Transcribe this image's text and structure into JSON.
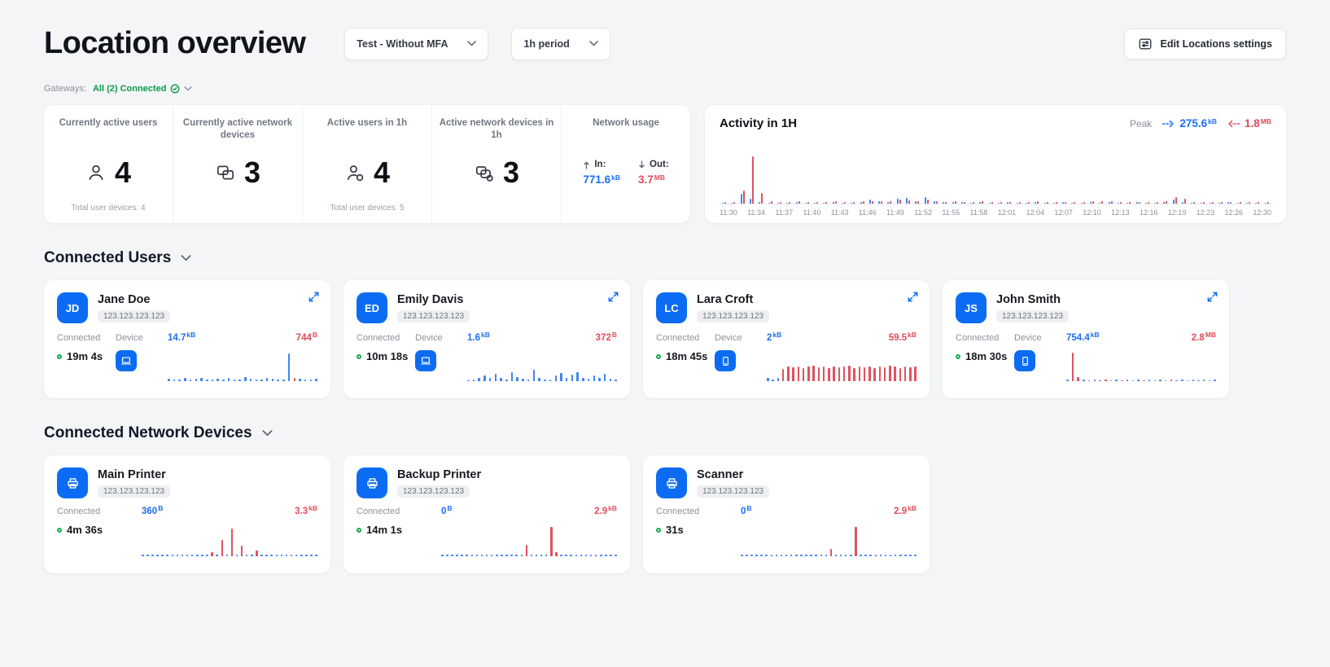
{
  "header": {
    "title": "Location overview",
    "location_dropdown": "Test - Without MFA",
    "period_dropdown": "1h period",
    "edit_button": "Edit Locations settings"
  },
  "gateways": {
    "label": "Gateways:",
    "value": "All (2) Connected"
  },
  "stats": [
    {
      "label": "Currently active users",
      "value": "4",
      "footer": "Total user devices: 4"
    },
    {
      "label": "Currently active network devices",
      "value": "3",
      "footer": ""
    },
    {
      "label": "Active users in 1h",
      "value": "4",
      "footer": "Total user devices: 5"
    },
    {
      "label": "Active network devices in 1h",
      "value": "3",
      "footer": ""
    }
  ],
  "network_usage": {
    "label": "Network usage",
    "in_label": "In:",
    "in_value": "771.6",
    "in_unit": "kB",
    "out_label": "Out:",
    "out_value": "3.7",
    "out_unit": "MB"
  },
  "activity": {
    "title": "Activity in 1H",
    "peak_label": "Peak",
    "peak_in_value": "275.6",
    "peak_in_unit": "kB",
    "peak_out_value": "1.8",
    "peak_out_unit": "MB",
    "ticks": [
      "11:30",
      "11:34",
      "11:37",
      "11:40",
      "11:43",
      "11:46",
      "11:49",
      "11:52",
      "11:55",
      "11:58",
      "12:01",
      "12:04",
      "12:07",
      "12:10",
      "12:13",
      "12:16",
      "12:19",
      "12:23",
      "12:26",
      "12:30"
    ],
    "bars": [
      [
        2,
        3
      ],
      [
        2,
        4
      ],
      [
        20,
        28
      ],
      [
        10,
        100
      ],
      [
        3,
        22
      ],
      [
        2,
        5
      ],
      [
        2,
        4
      ],
      [
        2,
        3
      ],
      [
        3,
        5
      ],
      [
        2,
        4
      ],
      [
        2,
        3
      ],
      [
        2,
        4
      ],
      [
        3,
        5
      ],
      [
        2,
        4
      ],
      [
        2,
        3
      ],
      [
        3,
        6
      ],
      [
        8,
        6
      ],
      [
        5,
        5
      ],
      [
        4,
        6
      ],
      [
        10,
        8
      ],
      [
        12,
        7
      ],
      [
        6,
        5
      ],
      [
        14,
        9
      ],
      [
        6,
        5
      ],
      [
        4,
        4
      ],
      [
        3,
        5
      ],
      [
        3,
        4
      ],
      [
        2,
        4
      ],
      [
        3,
        5
      ],
      [
        2,
        3
      ],
      [
        2,
        4
      ],
      [
        3,
        4
      ],
      [
        2,
        3
      ],
      [
        2,
        4
      ],
      [
        3,
        5
      ],
      [
        2,
        4
      ],
      [
        2,
        3
      ],
      [
        3,
        4
      ],
      [
        2,
        4
      ],
      [
        2,
        3
      ],
      [
        3,
        6
      ],
      [
        2,
        5
      ],
      [
        3,
        5
      ],
      [
        2,
        4
      ],
      [
        2,
        3
      ],
      [
        3,
        4
      ],
      [
        2,
        4
      ],
      [
        2,
        3
      ],
      [
        4,
        6
      ],
      [
        8,
        14
      ],
      [
        4,
        10
      ],
      [
        2,
        4
      ],
      [
        2,
        3
      ],
      [
        2,
        4
      ],
      [
        2,
        3
      ],
      [
        3,
        4
      ],
      [
        2,
        4
      ],
      [
        2,
        3
      ],
      [
        2,
        4
      ],
      [
        2,
        3
      ]
    ]
  },
  "users_section": {
    "title": "Connected Users"
  },
  "users": [
    {
      "initials": "JD",
      "name": "Jane Doe",
      "ip": "123.123.123.123",
      "connected_label": "Connected",
      "duration": "19m 4s",
      "device_label": "Device",
      "in_value": "14.7",
      "in_unit": "kB",
      "out_value": "744",
      "out_unit": "B",
      "spark": [
        [
          6,
          "b"
        ],
        [
          4,
          "b"
        ],
        [
          5,
          "b"
        ],
        [
          8,
          "b"
        ],
        [
          4,
          "b"
        ],
        [
          6,
          "b"
        ],
        [
          10,
          "b"
        ],
        [
          5,
          "b"
        ],
        [
          4,
          "b"
        ],
        [
          6,
          "b"
        ],
        [
          5,
          "b"
        ],
        [
          8,
          "b"
        ],
        [
          4,
          "b"
        ],
        [
          5,
          "b"
        ],
        [
          12,
          "b"
        ],
        [
          6,
          "b"
        ],
        [
          5,
          "b"
        ],
        [
          4,
          "b"
        ],
        [
          8,
          "b"
        ],
        [
          6,
          "b"
        ],
        [
          5,
          "b"
        ],
        [
          4,
          "b"
        ],
        [
          78,
          "b"
        ],
        [
          10,
          "r"
        ],
        [
          6,
          "b"
        ],
        [
          5,
          "b"
        ],
        [
          4,
          "b"
        ],
        [
          6,
          "b"
        ]
      ]
    },
    {
      "initials": "ED",
      "name": "Emily Davis",
      "ip": "123.123.123.123",
      "connected_label": "Connected",
      "duration": "10m 18s",
      "device_label": "Device",
      "in_value": "1.6",
      "in_unit": "kB",
      "out_value": "372",
      "out_unit": "B",
      "spark": [
        [
          3,
          "b"
        ],
        [
          4,
          "b"
        ],
        [
          8,
          "b"
        ],
        [
          15,
          "b"
        ],
        [
          10,
          "b"
        ],
        [
          20,
          "b"
        ],
        [
          8,
          "b"
        ],
        [
          5,
          "b"
        ],
        [
          25,
          "b"
        ],
        [
          12,
          "b"
        ],
        [
          6,
          "b"
        ],
        [
          4,
          "b"
        ],
        [
          32,
          "b"
        ],
        [
          10,
          "b"
        ],
        [
          5,
          "b"
        ],
        [
          4,
          "b"
        ],
        [
          15,
          "b"
        ],
        [
          22,
          "b"
        ],
        [
          8,
          "b"
        ],
        [
          18,
          "b"
        ],
        [
          26,
          "b"
        ],
        [
          10,
          "b"
        ],
        [
          6,
          "b"
        ],
        [
          16,
          "b"
        ],
        [
          8,
          "b"
        ],
        [
          20,
          "b"
        ],
        [
          6,
          "b"
        ],
        [
          4,
          "b"
        ]
      ]
    },
    {
      "initials": "LC",
      "name": "Lara Croft",
      "ip": "123.123.123.123",
      "connected_label": "Connected",
      "duration": "18m 45s",
      "device_label": "Device",
      "in_value": "2",
      "in_unit": "kB",
      "out_value": "59.5",
      "out_unit": "kB",
      "spark": [
        [
          8,
          "b"
        ],
        [
          5,
          "b"
        ],
        [
          10,
          "b"
        ],
        [
          35,
          "r"
        ],
        [
          40,
          "r"
        ],
        [
          38,
          "r"
        ],
        [
          42,
          "r"
        ],
        [
          36,
          "r"
        ],
        [
          40,
          "r"
        ],
        [
          44,
          "r"
        ],
        [
          38,
          "r"
        ],
        [
          41,
          "r"
        ],
        [
          36,
          "r"
        ],
        [
          42,
          "r"
        ],
        [
          38,
          "r"
        ],
        [
          40,
          "r"
        ],
        [
          44,
          "r"
        ],
        [
          36,
          "r"
        ],
        [
          40,
          "r"
        ],
        [
          38,
          "r"
        ],
        [
          42,
          "r"
        ],
        [
          36,
          "r"
        ],
        [
          40,
          "r"
        ],
        [
          38,
          "r"
        ],
        [
          44,
          "r"
        ],
        [
          40,
          "r"
        ],
        [
          36,
          "r"
        ],
        [
          42,
          "r"
        ],
        [
          38,
          "r"
        ],
        [
          40,
          "r"
        ]
      ]
    },
    {
      "initials": "JS",
      "name": "John Smith",
      "ip": "123.123.123.123",
      "connected_label": "Connected",
      "duration": "18m 30s",
      "device_label": "Device",
      "in_value": "754.4",
      "in_unit": "kB",
      "out_value": "2.8",
      "out_unit": "MB",
      "spark": [
        [
          5,
          "b"
        ],
        [
          80,
          "r"
        ],
        [
          12,
          "r"
        ],
        [
          4,
          "b"
        ],
        [
          3,
          "r"
        ],
        [
          4,
          "b"
        ],
        [
          3,
          "b"
        ],
        [
          4,
          "r"
        ],
        [
          3,
          "b"
        ],
        [
          4,
          "b"
        ],
        [
          3,
          "r"
        ],
        [
          4,
          "b"
        ],
        [
          3,
          "b"
        ],
        [
          4,
          "b"
        ],
        [
          3,
          "r"
        ],
        [
          4,
          "b"
        ],
        [
          3,
          "b"
        ],
        [
          4,
          "b"
        ],
        [
          3,
          "b"
        ],
        [
          4,
          "r"
        ],
        [
          3,
          "b"
        ],
        [
          4,
          "b"
        ],
        [
          3,
          "b"
        ],
        [
          4,
          "b"
        ],
        [
          3,
          "b"
        ],
        [
          4,
          "b"
        ],
        [
          3,
          "b"
        ],
        [
          4,
          "b"
        ]
      ]
    }
  ],
  "devices_section": {
    "title": "Connected Network Devices"
  },
  "devices": [
    {
      "name": "Main Printer",
      "ip": "123.123.123.123",
      "connected_label": "Connected",
      "duration": "4m 36s",
      "in_value": "360",
      "in_unit": "B",
      "out_value": "3.3",
      "out_unit": "kB",
      "spark": [
        [
          4,
          "b"
        ],
        [
          4,
          "b"
        ],
        [
          4,
          "b"
        ],
        [
          4,
          "b"
        ],
        [
          4,
          "b"
        ],
        [
          4,
          "b"
        ],
        [
          4,
          "b"
        ],
        [
          4,
          "b"
        ],
        [
          4,
          "b"
        ],
        [
          4,
          "b"
        ],
        [
          4,
          "b"
        ],
        [
          4,
          "b"
        ],
        [
          4,
          "b"
        ],
        [
          4,
          "b"
        ],
        [
          10,
          "r"
        ],
        [
          4,
          "b"
        ],
        [
          42,
          "r"
        ],
        [
          4,
          "b"
        ],
        [
          70,
          "r"
        ],
        [
          4,
          "b"
        ],
        [
          28,
          "r"
        ],
        [
          4,
          "b"
        ],
        [
          4,
          "b"
        ],
        [
          14,
          "r"
        ],
        [
          4,
          "b"
        ],
        [
          4,
          "b"
        ],
        [
          4,
          "b"
        ],
        [
          4,
          "b"
        ],
        [
          4,
          "b"
        ],
        [
          4,
          "b"
        ],
        [
          4,
          "b"
        ],
        [
          4,
          "b"
        ],
        [
          4,
          "b"
        ],
        [
          4,
          "b"
        ],
        [
          4,
          "b"
        ],
        [
          4,
          "b"
        ]
      ]
    },
    {
      "name": "Backup Printer",
      "ip": "123.123.123.123",
      "connected_label": "Connected",
      "duration": "14m 1s",
      "in_value": "0",
      "in_unit": "B",
      "out_value": "2.9",
      "out_unit": "kB",
      "spark": [
        [
          4,
          "b"
        ],
        [
          4,
          "b"
        ],
        [
          4,
          "b"
        ],
        [
          4,
          "b"
        ],
        [
          4,
          "b"
        ],
        [
          4,
          "b"
        ],
        [
          4,
          "b"
        ],
        [
          4,
          "b"
        ],
        [
          4,
          "b"
        ],
        [
          4,
          "b"
        ],
        [
          4,
          "b"
        ],
        [
          4,
          "b"
        ],
        [
          4,
          "b"
        ],
        [
          4,
          "b"
        ],
        [
          4,
          "b"
        ],
        [
          4,
          "b"
        ],
        [
          4,
          "b"
        ],
        [
          30,
          "r"
        ],
        [
          4,
          "b"
        ],
        [
          4,
          "b"
        ],
        [
          4,
          "b"
        ],
        [
          4,
          "b"
        ],
        [
          75,
          "r"
        ],
        [
          10,
          "r"
        ],
        [
          4,
          "b"
        ],
        [
          4,
          "b"
        ],
        [
          4,
          "b"
        ],
        [
          4,
          "b"
        ],
        [
          4,
          "b"
        ],
        [
          4,
          "b"
        ],
        [
          4,
          "b"
        ],
        [
          4,
          "b"
        ],
        [
          4,
          "b"
        ],
        [
          4,
          "b"
        ],
        [
          4,
          "b"
        ],
        [
          4,
          "b"
        ]
      ]
    },
    {
      "name": "Scanner",
      "ip": "123.123.123.123",
      "connected_label": "Connected",
      "duration": "31s",
      "in_value": "0",
      "in_unit": "B",
      "out_value": "2.9",
      "out_unit": "kB",
      "spark": [
        [
          4,
          "b"
        ],
        [
          4,
          "b"
        ],
        [
          4,
          "b"
        ],
        [
          4,
          "b"
        ],
        [
          4,
          "b"
        ],
        [
          4,
          "b"
        ],
        [
          4,
          "b"
        ],
        [
          4,
          "b"
        ],
        [
          4,
          "b"
        ],
        [
          4,
          "b"
        ],
        [
          4,
          "b"
        ],
        [
          4,
          "b"
        ],
        [
          4,
          "b"
        ],
        [
          4,
          "b"
        ],
        [
          4,
          "b"
        ],
        [
          4,
          "b"
        ],
        [
          4,
          "b"
        ],
        [
          4,
          "b"
        ],
        [
          18,
          "r"
        ],
        [
          4,
          "b"
        ],
        [
          4,
          "b"
        ],
        [
          4,
          "b"
        ],
        [
          4,
          "b"
        ],
        [
          75,
          "r"
        ],
        [
          4,
          "b"
        ],
        [
          4,
          "b"
        ],
        [
          4,
          "b"
        ],
        [
          4,
          "b"
        ],
        [
          4,
          "b"
        ],
        [
          4,
          "b"
        ],
        [
          4,
          "b"
        ],
        [
          4,
          "b"
        ],
        [
          4,
          "b"
        ],
        [
          4,
          "b"
        ],
        [
          4,
          "b"
        ],
        [
          4,
          "b"
        ]
      ]
    }
  ],
  "colors": {
    "accent": "#0b6cf3",
    "green": "#0a9b47",
    "in_blue": "#1b6ef2",
    "out_red": "#e14b5a",
    "background": "#f4f5f7"
  }
}
